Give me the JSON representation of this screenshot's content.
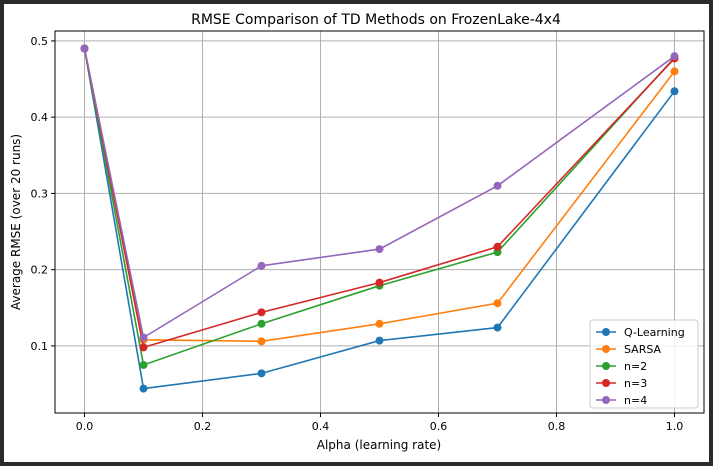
{
  "chart_data": {
    "type": "line",
    "title": "RMSE Comparison of TD Methods on FrozenLake-4x4",
    "xlabel": "Alpha (learning rate)",
    "ylabel": "Average RMSE (over 20 runs)",
    "xlim": [
      -0.05,
      1.05
    ],
    "ylim": [
      0.012,
      0.513
    ],
    "xticks": [
      0.0,
      0.2,
      0.4,
      0.6,
      0.8,
      1.0
    ],
    "xtick_labels": [
      "0.0",
      "0.2",
      "0.4",
      "0.6",
      "0.8",
      "1.0"
    ],
    "yticks": [
      0.1,
      0.2,
      0.3,
      0.4,
      0.5
    ],
    "ytick_labels": [
      "0.1",
      "0.2",
      "0.3",
      "0.4",
      "0.5"
    ],
    "grid": true,
    "legend_position": "lower-right",
    "x": [
      0.0,
      0.1,
      0.3,
      0.5,
      0.7,
      1.0
    ],
    "series": [
      {
        "name": "Q-Learning",
        "color": "#1f77b4",
        "values": [
          0.49,
          0.044,
          0.064,
          0.107,
          0.124,
          0.434
        ]
      },
      {
        "name": "SARSA",
        "color": "#ff7f0e",
        "values": [
          0.49,
          0.108,
          0.106,
          0.129,
          0.156,
          0.46
        ]
      },
      {
        "name": "n=2",
        "color": "#2ca02c",
        "values": [
          0.49,
          0.075,
          0.129,
          0.179,
          0.223,
          0.478
        ]
      },
      {
        "name": "n=3",
        "color": "#d62728",
        "values": [
          0.49,
          0.098,
          0.144,
          0.183,
          0.23,
          0.477
        ]
      },
      {
        "name": "n=4",
        "color": "#9467bd",
        "values": [
          0.49,
          0.111,
          0.205,
          0.227,
          0.31,
          0.48
        ]
      }
    ]
  }
}
